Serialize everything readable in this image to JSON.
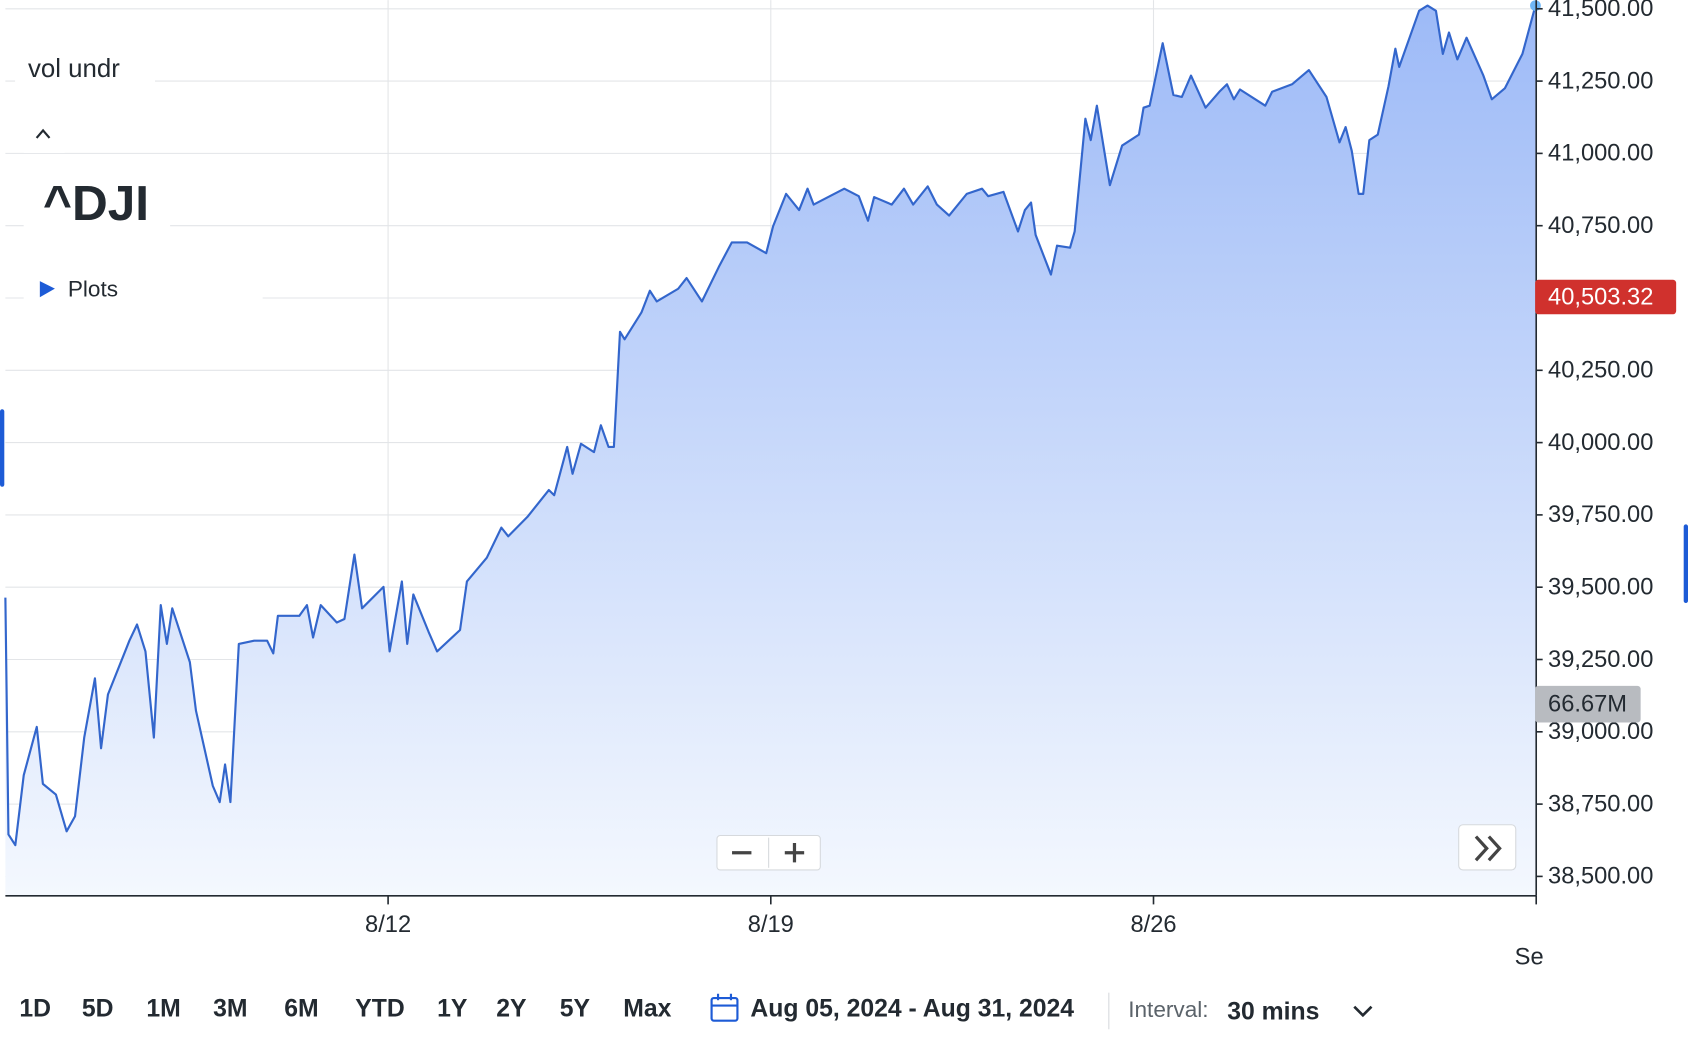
{
  "chart_data": {
    "type": "area",
    "x": [
      0,
      0.04,
      0.13,
      0.24,
      0.41,
      0.49,
      0.66,
      0.8,
      0.91,
      1.03,
      1.17,
      1.25,
      1.34,
      1.62,
      1.72,
      1.83,
      1.94,
      2.03,
      2.11,
      2.18,
      2.41,
      2.49,
      2.71,
      2.8,
      2.87,
      2.94,
      3.05,
      3.25,
      3.42,
      3.5,
      3.56,
      3.84,
      3.94,
      4.02,
      4.12,
      4.33,
      4.43,
      4.56,
      4.66,
      4.94,
      5.02,
      5.18,
      5.25,
      5.33,
      5.53,
      5.64,
      5.94,
      6.03,
      6.29,
      6.48,
      6.57,
      6.82,
      7.1,
      7.17,
      7.34,
      7.41,
      7.52,
      7.69,
      7.78,
      7.88,
      7.95,
      8.03,
      8.09,
      8.31,
      8.42,
      8.51,
      8.79,
      8.9,
      9.1,
      9.32,
      9.49,
      9.69,
      9.94,
      10.03,
      10.2,
      10.37,
      10.48,
      10.56,
      10.96,
      11.15,
      11.27,
      11.35,
      11.58,
      11.74,
      11.86,
      12.05,
      12.17,
      12.33,
      12.56,
      12.76,
      12.84,
      13.04,
      13.23,
      13.32,
      13.4,
      13.46,
      13.66,
      13.74,
      13.91,
      13.97,
      14.11,
      14.18,
      14.26,
      14.43,
      14.59,
      14.81,
      14.87,
      14.95,
      15.12,
      15.26,
      15.37,
      15.49,
      15.68,
      15.86,
      15.96,
      16.05,
      16.13,
      16.46,
      16.55,
      16.81,
      17.03,
      17.26,
      17.43,
      17.51,
      17.59,
      17.68,
      17.74,
      17.82,
      17.93,
      18.07,
      18.16,
      18.21,
      18.47,
      18.58,
      18.69,
      18.78,
      18.86,
      18.97,
      19.09,
      19.31,
      19.42,
      19.59,
      19.82,
      19.99
    ],
    "values": [
      39464,
      38645,
      38608,
      38850,
      39017,
      38820,
      38783,
      38656,
      38708,
      38980,
      39185,
      38943,
      39129,
      39315,
      39371,
      39278,
      38980,
      39438,
      39304,
      39427,
      39241,
      39073,
      38813,
      38757,
      38887,
      38757,
      39304,
      39315,
      39315,
      39271,
      39401,
      39401,
      39438,
      39326,
      39438,
      39378,
      39390,
      39613,
      39427,
      39501,
      39278,
      39520,
      39304,
      39475,
      39345,
      39278,
      39352,
      39520,
      39602,
      39706,
      39676,
      39743,
      39836,
      39818,
      39985,
      39892,
      39996,
      39967,
      40060,
      39985,
      39985,
      40383,
      40357,
      40450,
      40525,
      40488,
      40532,
      40569,
      40488,
      40607,
      40692,
      40692,
      40655,
      40748,
      40860,
      40804,
      40878,
      40823,
      40878,
      40852,
      40767,
      40849,
      40823,
      40878,
      40823,
      40886,
      40823,
      40785,
      40860,
      40878,
      40852,
      40867,
      40730,
      40804,
      40830,
      40718,
      40581,
      40681,
      40674,
      40730,
      41120,
      41046,
      41165,
      40890,
      41027,
      41065,
      41158,
      41165,
      41381,
      41202,
      41195,
      41269,
      41158,
      41213,
      41239,
      41187,
      41221,
      41165,
      41213,
      41239,
      41288,
      41195,
      41038,
      41091,
      41009,
      40860,
      40860,
      41046,
      41065,
      41232,
      41362,
      41299,
      41493,
      41511,
      41493,
      41344,
      41418,
      41325,
      41400,
      41269,
      41187,
      41225,
      41344,
      41511
    ],
    "color": "#3366cc",
    "xlim": [
      0,
      20
    ],
    "ylim": [
      38433,
      41530
    ],
    "xticks": [
      {
        "value": 5,
        "label": "8/12"
      },
      {
        "value": 10,
        "label": "8/19"
      },
      {
        "value": 15,
        "label": "8/26"
      },
      {
        "value": 20,
        "label": "Se"
      }
    ],
    "yticks": [
      {
        "value": 41500,
        "label": "41,500.00"
      },
      {
        "value": 41250,
        "label": "41,250.00"
      },
      {
        "value": 41000,
        "label": "41,000.00"
      },
      {
        "value": 40750,
        "label": "40,750.00"
      },
      {
        "value": 40500,
        "label": "40,500.00"
      },
      {
        "value": 40250,
        "label": "40,250.00"
      },
      {
        "value": 40000,
        "label": "40,000.00"
      },
      {
        "value": 39750,
        "label": "39,750.00"
      },
      {
        "value": 39500,
        "label": "39,500.00"
      },
      {
        "value": 39250,
        "label": "39,250.00"
      },
      {
        "value": 39000,
        "label": "39,000.00"
      },
      {
        "value": 38750,
        "label": "38,750.00"
      },
      {
        "value": 38500,
        "label": "38,500.00"
      }
    ],
    "grid": true,
    "annotations": [
      {
        "value": 40503.32,
        "label": "40,503.32",
        "color": "#d0312d"
      }
    ]
  },
  "volume_label": "66.67M",
  "overlay": {
    "study": "vol undr",
    "symbol": "^DJI",
    "plots": "Plots"
  },
  "toolbar": {
    "ranges": [
      "1D",
      "5D",
      "1M",
      "3M",
      "6M",
      "YTD",
      "1Y",
      "2Y",
      "5Y",
      "Max"
    ],
    "date_range": "Aug 05, 2024 - Aug 31, 2024",
    "interval_label": "Interval:",
    "interval": "30 mins"
  }
}
